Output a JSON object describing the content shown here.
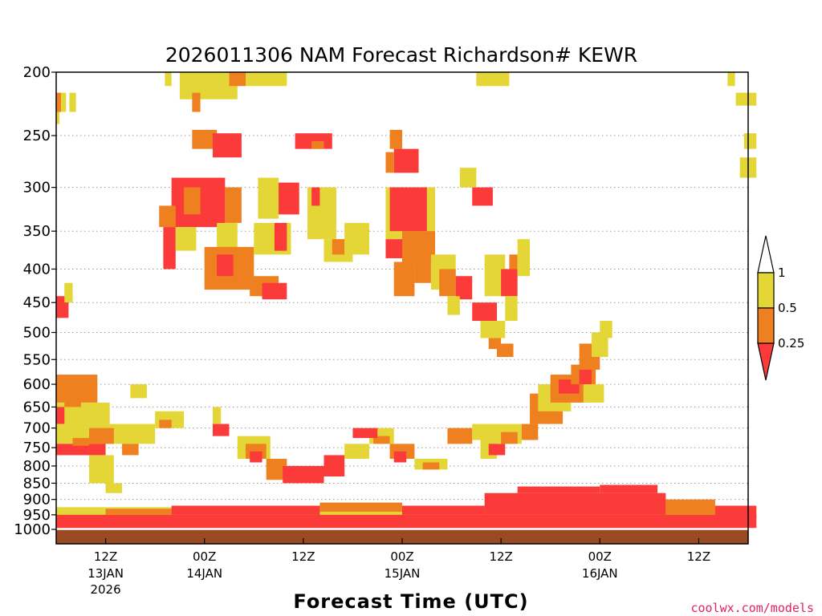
{
  "chart_data": {
    "type": "heatmap",
    "title": "2026011306 NAM Forecast Richardson# KEWR",
    "xlabel": "Forecast Time (UTC)",
    "ylabel": "",
    "y_scale": "log",
    "y_inverted": true,
    "ylim": [
      1000,
      200
    ],
    "y_ticks": [
      200,
      250,
      300,
      350,
      400,
      450,
      500,
      550,
      600,
      650,
      700,
      750,
      800,
      850,
      900,
      950,
      1000
    ],
    "x_range_hours": [
      6,
      90
    ],
    "x_ticks": [
      {
        "hour": 12,
        "label": "12Z",
        "date": "13JAN",
        "year": "2026"
      },
      {
        "hour": 24,
        "label": "00Z",
        "date": "14JAN",
        "year": ""
      },
      {
        "hour": 36,
        "label": "12Z",
        "date": "",
        "year": ""
      },
      {
        "hour": 48,
        "label": "00Z",
        "date": "15JAN",
        "year": ""
      },
      {
        "hour": 60,
        "label": "12Z",
        "date": "",
        "year": ""
      },
      {
        "hour": 72,
        "label": "00Z",
        "date": "16JAN",
        "year": ""
      },
      {
        "hour": 84,
        "label": "12Z",
        "date": "",
        "year": ""
      }
    ],
    "grid": "dotted horizontal",
    "legend": {
      "placement": "right",
      "bins": [
        {
          "range": "> 1",
          "color": "#ffffff"
        },
        {
          "range": "0.5 to 1",
          "color": "#e3d636"
        },
        {
          "range": "0.25 to 0.5",
          "color": "#ee8020"
        },
        {
          "range": "< 0.25",
          "color": "#fb3a3a"
        }
      ],
      "labels": [
        "1",
        "0.5",
        "0.25"
      ]
    },
    "surface_color": "#9a4a22",
    "cells": [
      {
        "t0": 6.0,
        "t1": 6.6,
        "p0": 215,
        "p1": 230,
        "c": "o"
      },
      {
        "t0": 6.0,
        "t1": 6.4,
        "p0": 230,
        "p1": 240,
        "c": "y"
      },
      {
        "t0": 6.6,
        "t1": 7.2,
        "p0": 215,
        "p1": 230,
        "c": "y"
      },
      {
        "t0": 7.6,
        "t1": 8.4,
        "p0": 215,
        "p1": 230,
        "c": "y"
      },
      {
        "t0": 19.2,
        "t1": 20.0,
        "p0": 200,
        "p1": 210,
        "c": "y"
      },
      {
        "t0": 21.0,
        "t1": 28.0,
        "p0": 200,
        "p1": 220,
        "c": "y"
      },
      {
        "t0": 27.0,
        "t1": 29.0,
        "p0": 200,
        "p1": 210,
        "c": "o"
      },
      {
        "t0": 29.0,
        "t1": 34.0,
        "p0": 200,
        "p1": 210,
        "c": "y"
      },
      {
        "t0": 57.0,
        "t1": 61.0,
        "p0": 200,
        "p1": 210,
        "c": "y"
      },
      {
        "t0": 87.5,
        "t1": 88.4,
        "p0": 200,
        "p1": 210,
        "c": "y"
      },
      {
        "t0": 88.5,
        "t1": 91.0,
        "p0": 215,
        "p1": 225,
        "c": "y"
      },
      {
        "t0": 22.5,
        "t1": 23.5,
        "p0": 215,
        "p1": 230,
        "c": "o"
      },
      {
        "t0": 22.5,
        "t1": 25.5,
        "p0": 245,
        "p1": 262,
        "c": "o"
      },
      {
        "t0": 25.0,
        "t1": 28.5,
        "p0": 248,
        "p1": 270,
        "c": "r"
      },
      {
        "t0": 35.0,
        "t1": 39.5,
        "p0": 248,
        "p1": 262,
        "c": "r"
      },
      {
        "t0": 37.0,
        "t1": 38.5,
        "p0": 255,
        "p1": 262,
        "c": "o"
      },
      {
        "t0": 46.5,
        "t1": 48.0,
        "p0": 245,
        "p1": 262,
        "c": "o"
      },
      {
        "t0": 47.0,
        "t1": 50.0,
        "p0": 262,
        "p1": 285,
        "c": "r"
      },
      {
        "t0": 46.0,
        "t1": 47.0,
        "p0": 265,
        "p1": 285,
        "c": "o"
      },
      {
        "t0": 89.5,
        "t1": 91.0,
        "p0": 248,
        "p1": 262,
        "c": "y"
      },
      {
        "t0": 89.0,
        "t1": 91.0,
        "p0": 270,
        "p1": 290,
        "c": "y"
      },
      {
        "t0": 20.0,
        "t1": 26.5,
        "p0": 290,
        "p1": 345,
        "c": "r"
      },
      {
        "t0": 21.5,
        "t1": 23.5,
        "p0": 300,
        "p1": 330,
        "c": "o"
      },
      {
        "t0": 26.5,
        "t1": 28.5,
        "p0": 300,
        "p1": 340,
        "c": "o"
      },
      {
        "t0": 18.5,
        "t1": 20.5,
        "p0": 320,
        "p1": 345,
        "c": "o"
      },
      {
        "t0": 19.0,
        "t1": 20.5,
        "p0": 345,
        "p1": 400,
        "c": "r"
      },
      {
        "t0": 20.5,
        "t1": 23.0,
        "p0": 345,
        "p1": 375,
        "c": "y"
      },
      {
        "t0": 25.5,
        "t1": 28.0,
        "p0": 340,
        "p1": 410,
        "c": "y"
      },
      {
        "t0": 24.0,
        "t1": 30.0,
        "p0": 370,
        "p1": 430,
        "c": "o"
      },
      {
        "t0": 25.5,
        "t1": 27.5,
        "p0": 380,
        "p1": 410,
        "c": "r"
      },
      {
        "t0": 32.0,
        "t1": 35.5,
        "p0": 295,
        "p1": 330,
        "c": "r"
      },
      {
        "t0": 30.5,
        "t1": 33.0,
        "p0": 290,
        "p1": 335,
        "c": "y"
      },
      {
        "t0": 30.0,
        "t1": 34.5,
        "p0": 340,
        "p1": 380,
        "c": "y"
      },
      {
        "t0": 32.5,
        "t1": 34.0,
        "p0": 340,
        "p1": 375,
        "c": "r"
      },
      {
        "t0": 29.5,
        "t1": 33.0,
        "p0": 410,
        "p1": 440,
        "c": "o"
      },
      {
        "t0": 31.0,
        "t1": 34.0,
        "p0": 420,
        "p1": 445,
        "c": "r"
      },
      {
        "t0": 36.5,
        "t1": 40.0,
        "p0": 300,
        "p1": 360,
        "c": "y"
      },
      {
        "t0": 37.0,
        "t1": 38.0,
        "p0": 300,
        "p1": 320,
        "c": "r"
      },
      {
        "t0": 38.5,
        "t1": 42.0,
        "p0": 360,
        "p1": 390,
        "c": "y"
      },
      {
        "t0": 39.5,
        "t1": 41.0,
        "p0": 360,
        "p1": 380,
        "c": "o"
      },
      {
        "t0": 41.0,
        "t1": 44.0,
        "p0": 340,
        "p1": 380,
        "c": "y"
      },
      {
        "t0": 46.0,
        "t1": 52.0,
        "p0": 300,
        "p1": 360,
        "c": "y"
      },
      {
        "t0": 46.5,
        "t1": 51.0,
        "p0": 300,
        "p1": 350,
        "c": "r"
      },
      {
        "t0": 48.0,
        "t1": 52.0,
        "p0": 350,
        "p1": 390,
        "c": "o"
      },
      {
        "t0": 49.5,
        "t1": 51.5,
        "p0": 390,
        "p1": 420,
        "c": "o"
      },
      {
        "t0": 47.0,
        "t1": 49.5,
        "p0": 390,
        "p1": 440,
        "c": "o"
      },
      {
        "t0": 46.0,
        "t1": 48.0,
        "p0": 360,
        "p1": 385,
        "c": "r"
      },
      {
        "t0": 51.5,
        "t1": 54.5,
        "p0": 380,
        "p1": 430,
        "c": "y"
      },
      {
        "t0": 52.5,
        "t1": 54.5,
        "p0": 400,
        "p1": 440,
        "c": "o"
      },
      {
        "t0": 54.5,
        "t1": 56.5,
        "p0": 410,
        "p1": 445,
        "c": "r"
      },
      {
        "t0": 53.5,
        "t1": 55.0,
        "p0": 440,
        "p1": 470,
        "c": "y"
      },
      {
        "t0": 56.5,
        "t1": 59.0,
        "p0": 300,
        "p1": 320,
        "c": "r"
      },
      {
        "t0": 55.0,
        "t1": 57.0,
        "p0": 280,
        "p1": 300,
        "c": "y"
      },
      {
        "t0": 58.0,
        "t1": 60.5,
        "p0": 380,
        "p1": 440,
        "c": "y"
      },
      {
        "t0": 60.0,
        "t1": 62.0,
        "p0": 400,
        "p1": 440,
        "c": "r"
      },
      {
        "t0": 61.0,
        "t1": 62.0,
        "p0": 380,
        "p1": 400,
        "c": "o"
      },
      {
        "t0": 56.5,
        "t1": 59.5,
        "p0": 450,
        "p1": 480,
        "c": "r"
      },
      {
        "t0": 57.5,
        "t1": 60.5,
        "p0": 480,
        "p1": 510,
        "c": "y"
      },
      {
        "t0": 58.5,
        "t1": 60.0,
        "p0": 510,
        "p1": 530,
        "c": "o"
      },
      {
        "t0": 59.5,
        "t1": 61.5,
        "p0": 520,
        "p1": 545,
        "c": "o"
      },
      {
        "t0": 60.5,
        "t1": 62.0,
        "p0": 440,
        "p1": 480,
        "c": "y"
      },
      {
        "t0": 62.0,
        "t1": 63.5,
        "p0": 360,
        "p1": 410,
        "c": "y"
      },
      {
        "t0": 6.0,
        "t1": 7.5,
        "p0": 440,
        "p1": 475,
        "c": "r"
      },
      {
        "t0": 7.0,
        "t1": 8.0,
        "p0": 420,
        "p1": 450,
        "c": "y"
      },
      {
        "t0": 6.0,
        "t1": 11.0,
        "p0": 580,
        "p1": 640,
        "c": "o"
      },
      {
        "t0": 6.0,
        "t1": 12.5,
        "p0": 640,
        "p1": 690,
        "c": "y"
      },
      {
        "t0": 6.0,
        "t1": 7.0,
        "p0": 650,
        "p1": 690,
        "c": "r"
      },
      {
        "t0": 7.0,
        "t1": 9.0,
        "p0": 610,
        "p1": 650,
        "c": "o"
      },
      {
        "t0": 6.0,
        "t1": 18.0,
        "p0": 690,
        "p1": 740,
        "c": "y"
      },
      {
        "t0": 6.0,
        "t1": 12.0,
        "p0": 740,
        "p1": 770,
        "c": "r"
      },
      {
        "t0": 8.0,
        "t1": 10.0,
        "p0": 725,
        "p1": 745,
        "c": "o"
      },
      {
        "t0": 10.0,
        "t1": 13.0,
        "p0": 700,
        "p1": 740,
        "c": "o"
      },
      {
        "t0": 14.0,
        "t1": 16.0,
        "p0": 740,
        "p1": 770,
        "c": "o"
      },
      {
        "t0": 10.0,
        "t1": 13.0,
        "p0": 770,
        "p1": 850,
        "c": "y"
      },
      {
        "t0": 12.0,
        "t1": 14.0,
        "p0": 850,
        "p1": 880,
        "c": "y"
      },
      {
        "t0": 15.0,
        "t1": 17.0,
        "p0": 600,
        "p1": 630,
        "c": "y"
      },
      {
        "t0": 18.0,
        "t1": 21.5,
        "p0": 660,
        "p1": 700,
        "c": "y"
      },
      {
        "t0": 18.5,
        "t1": 20.0,
        "p0": 680,
        "p1": 700,
        "c": "o"
      },
      {
        "t0": 25.0,
        "t1": 26.0,
        "p0": 650,
        "p1": 690,
        "c": "y"
      },
      {
        "t0": 25.0,
        "t1": 27.0,
        "p0": 690,
        "p1": 720,
        "c": "r"
      },
      {
        "t0": 28.0,
        "t1": 32.0,
        "p0": 720,
        "p1": 780,
        "c": "y"
      },
      {
        "t0": 29.0,
        "t1": 31.5,
        "p0": 740,
        "p1": 780,
        "c": "o"
      },
      {
        "t0": 29.5,
        "t1": 31.0,
        "p0": 760,
        "p1": 790,
        "c": "r"
      },
      {
        "t0": 31.5,
        "t1": 34.0,
        "p0": 780,
        "p1": 840,
        "c": "o"
      },
      {
        "t0": 33.5,
        "t1": 38.5,
        "p0": 800,
        "p1": 850,
        "c": "r"
      },
      {
        "t0": 38.5,
        "t1": 41.0,
        "p0": 770,
        "p1": 830,
        "c": "r"
      },
      {
        "t0": 41.0,
        "t1": 44.0,
        "p0": 740,
        "p1": 780,
        "c": "y"
      },
      {
        "t0": 44.0,
        "t1": 47.0,
        "p0": 700,
        "p1": 740,
        "c": "y"
      },
      {
        "t0": 44.5,
        "t1": 46.5,
        "p0": 720,
        "p1": 740,
        "c": "o"
      },
      {
        "t0": 42.0,
        "t1": 45.0,
        "p0": 700,
        "p1": 725,
        "c": "r"
      },
      {
        "t0": 46.5,
        "t1": 49.5,
        "p0": 740,
        "p1": 780,
        "c": "o"
      },
      {
        "t0": 47.0,
        "t1": 48.5,
        "p0": 760,
        "p1": 790,
        "c": "r"
      },
      {
        "t0": 49.5,
        "t1": 53.5,
        "p0": 780,
        "p1": 810,
        "c": "y"
      },
      {
        "t0": 50.5,
        "t1": 52.5,
        "p0": 790,
        "p1": 810,
        "c": "o"
      },
      {
        "t0": 53.5,
        "t1": 56.5,
        "p0": 700,
        "p1": 740,
        "c": "o"
      },
      {
        "t0": 56.5,
        "t1": 59.5,
        "p0": 690,
        "p1": 730,
        "c": "y"
      },
      {
        "t0": 57.5,
        "t1": 59.5,
        "p0": 730,
        "p1": 780,
        "c": "y"
      },
      {
        "t0": 58.5,
        "t1": 60.5,
        "p0": 740,
        "p1": 770,
        "c": "r"
      },
      {
        "t0": 59.5,
        "t1": 62.5,
        "p0": 690,
        "p1": 740,
        "c": "y"
      },
      {
        "t0": 60.0,
        "t1": 62.0,
        "p0": 710,
        "p1": 740,
        "c": "o"
      },
      {
        "t0": 62.5,
        "t1": 64.5,
        "p0": 690,
        "p1": 730,
        "c": "o"
      },
      {
        "t0": 63.5,
        "t1": 67.5,
        "p0": 620,
        "p1": 690,
        "c": "o"
      },
      {
        "t0": 64.5,
        "t1": 68.5,
        "p0": 600,
        "p1": 660,
        "c": "y"
      },
      {
        "t0": 66.0,
        "t1": 70.5,
        "p0": 580,
        "p1": 640,
        "c": "o"
      },
      {
        "t0": 67.0,
        "t1": 69.5,
        "p0": 590,
        "p1": 620,
        "c": "r"
      },
      {
        "t0": 68.5,
        "t1": 71.5,
        "p0": 560,
        "p1": 600,
        "c": "o"
      },
      {
        "t0": 69.5,
        "t1": 71.0,
        "p0": 570,
        "p1": 600,
        "c": "r"
      },
      {
        "t0": 69.5,
        "t1": 72.0,
        "p0": 520,
        "p1": 570,
        "c": "o"
      },
      {
        "t0": 71.0,
        "t1": 73.0,
        "p0": 500,
        "p1": 545,
        "c": "y"
      },
      {
        "t0": 72.0,
        "t1": 73.5,
        "p0": 480,
        "p1": 510,
        "c": "y"
      },
      {
        "t0": 70.0,
        "t1": 72.5,
        "p0": 600,
        "p1": 640,
        "c": "y"
      },
      {
        "t0": 6.0,
        "t1": 91.0,
        "p0": 925,
        "p1": 980,
        "c": "y"
      },
      {
        "t0": 6.0,
        "t1": 91.0,
        "p0": 950,
        "p1": 995,
        "c": "r"
      },
      {
        "t0": 12.0,
        "t1": 20.0,
        "p0": 930,
        "p1": 950,
        "c": "o"
      },
      {
        "t0": 20.0,
        "t1": 38.0,
        "p0": 920,
        "p1": 950,
        "c": "r"
      },
      {
        "t0": 38.0,
        "t1": 48.0,
        "p0": 910,
        "p1": 940,
        "c": "o"
      },
      {
        "t0": 48.0,
        "t1": 58.0,
        "p0": 920,
        "p1": 950,
        "c": "r"
      },
      {
        "t0": 58.0,
        "t1": 80.0,
        "p0": 880,
        "p1": 950,
        "c": "r"
      },
      {
        "t0": 62.0,
        "t1": 72.0,
        "p0": 860,
        "p1": 880,
        "c": "r"
      },
      {
        "t0": 72.0,
        "t1": 79.0,
        "p0": 855,
        "p1": 880,
        "c": "r"
      },
      {
        "t0": 80.0,
        "t1": 86.0,
        "p0": 900,
        "p1": 950,
        "c": "o"
      },
      {
        "t0": 86.0,
        "t1": 91.0,
        "p0": 920,
        "p1": 960,
        "c": "r"
      }
    ]
  },
  "credit": "coolwx.com/models"
}
